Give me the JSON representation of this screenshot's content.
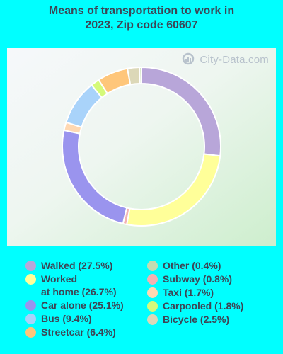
{
  "title_lines": [
    "Means of transportation to work in",
    "2023, Zip code 60607"
  ],
  "watermark": "City-Data.com",
  "chart_data": {
    "type": "pie",
    "donut": true,
    "title": "Means of transportation to work in 2023, Zip code 60607",
    "slices": [
      {
        "name": "Walked",
        "value": 27.5,
        "color": "#b8a6d9",
        "legend": "Walked (27.5%)"
      },
      {
        "name": "Worked at home",
        "value": 26.7,
        "color": "#ffff99",
        "legend": "Worked\nat home (26.7%)"
      },
      {
        "name": "Subway",
        "value": 0.8,
        "color": "#f2b2b2",
        "legend": "Subway (0.8%)"
      },
      {
        "name": "Car alone",
        "value": 25.1,
        "color": "#9a94ee",
        "legend": "Car alone (25.1%)"
      },
      {
        "name": "Taxi",
        "value": 1.7,
        "color": "#ffd8b2",
        "legend": "Taxi (1.7%)"
      },
      {
        "name": "Bus",
        "value": 9.4,
        "color": "#a9d3fa",
        "legend": "Bus (9.4%)"
      },
      {
        "name": "Carpooled",
        "value": 1.8,
        "color": "#d5fa7a",
        "legend": "Carpooled (1.8%)"
      },
      {
        "name": "Streetcar",
        "value": 6.4,
        "color": "#fec67a",
        "legend": "Streetcar (6.4%)"
      },
      {
        "name": "Bicycle",
        "value": 2.5,
        "color": "#dcd8b8",
        "legend": "Bicycle (2.5%)"
      },
      {
        "name": "Other",
        "value": 0.4,
        "color": "#c4dcb0",
        "legend": "Other (0.4%)"
      }
    ],
    "legend_columns": [
      [
        "Walked",
        "Worked at home",
        "Car alone",
        "Bus",
        "Streetcar"
      ],
      [
        "Other",
        "Subway",
        "Taxi",
        "Carpooled",
        "Bicycle"
      ]
    ]
  }
}
